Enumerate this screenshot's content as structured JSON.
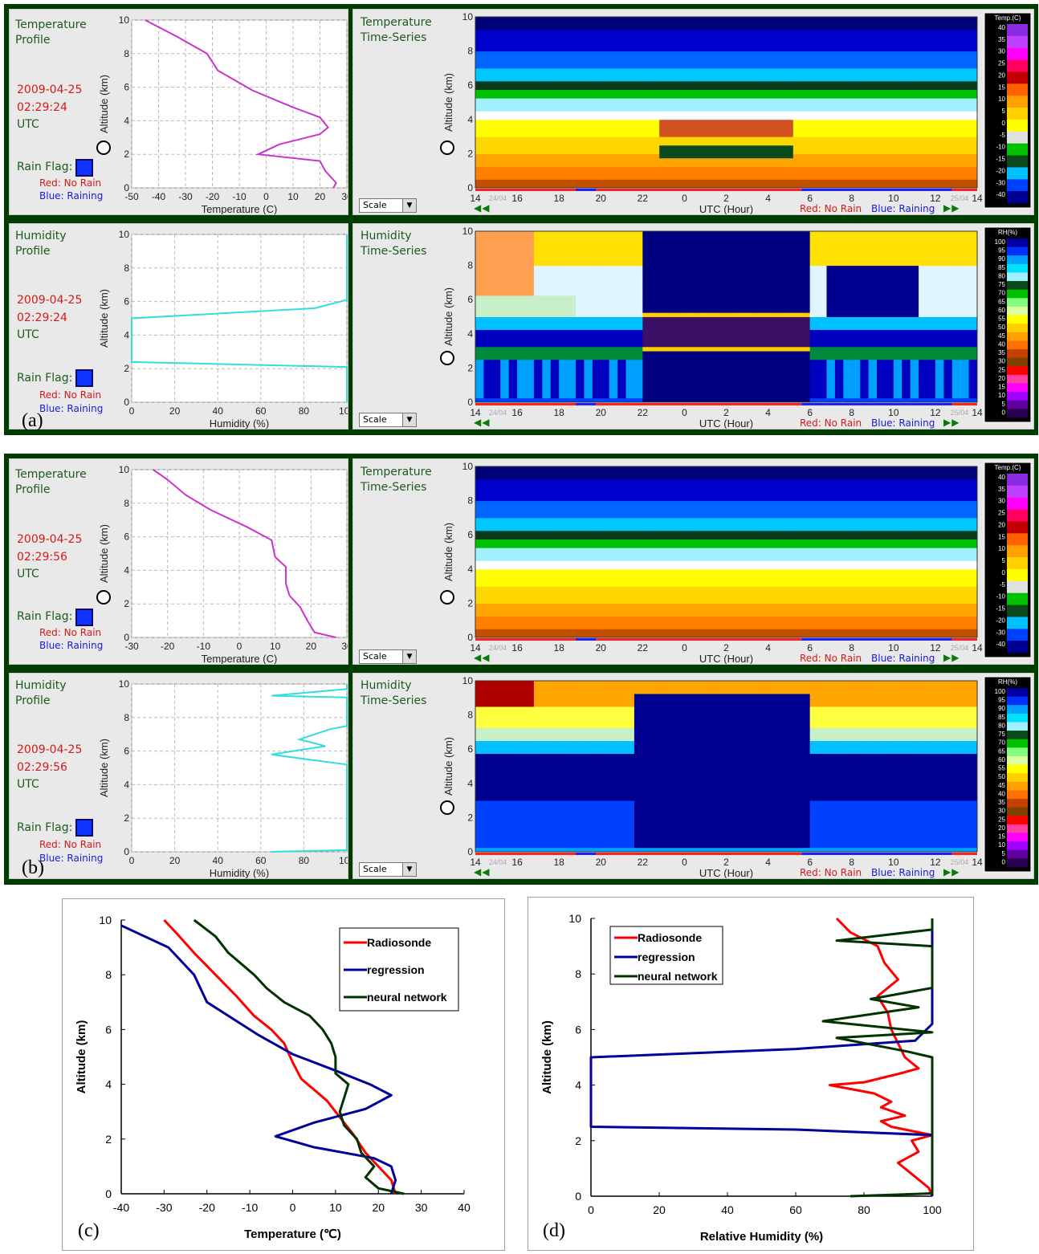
{
  "screens": [
    {
      "tag": "(a)",
      "temp_profile": {
        "title": "Temperature\nProfile",
        "date": "2009-04-25",
        "time": "02:29:24",
        "tz": "UTC",
        "xlabel": "Temperature (C)",
        "ylabel": "Altitude (km)",
        "xticks": [
          "-50",
          "-40",
          "-30",
          "-20",
          "-10",
          "0",
          "10",
          "20",
          "30"
        ],
        "xrange": [
          -50,
          30
        ],
        "yticks": [
          "0",
          "2",
          "4",
          "6",
          "8",
          "10"
        ],
        "line_color": "#cc33cc",
        "profile": [
          [
            25,
            0
          ],
          [
            26,
            0.3
          ],
          [
            22,
            1
          ],
          [
            20,
            1.6
          ],
          [
            -3,
            2
          ],
          [
            5,
            2.6
          ],
          [
            20,
            3.2
          ],
          [
            23,
            3.6
          ],
          [
            20,
            4.2
          ],
          [
            10,
            4.8
          ],
          [
            -5,
            5.8
          ],
          [
            -18,
            7
          ],
          [
            -22,
            8
          ],
          [
            -33,
            9
          ],
          [
            -45,
            10
          ]
        ]
      },
      "hum_profile": {
        "title": "Humidity\nProfile",
        "date": "2009-04-25",
        "time": "02:29:24",
        "tz": "UTC",
        "xlabel": "Humidity (%)",
        "ylabel": "Altitude (km)",
        "xticks": [
          "0",
          "20",
          "40",
          "60",
          "80",
          "100"
        ],
        "xrange": [
          0,
          100
        ],
        "yticks": [
          "0",
          "2",
          "4",
          "6",
          "8",
          "10"
        ],
        "line_color": "#33dddd",
        "profile": [
          [
            100,
            0
          ],
          [
            100,
            2.1
          ],
          [
            0,
            2.4
          ],
          [
            0,
            5
          ],
          [
            85,
            5.6
          ],
          [
            100,
            6.1
          ],
          [
            100,
            10
          ]
        ]
      },
      "temp_ts": {
        "title": "Temperature\nTime-Series",
        "ylabel": "Altitude (km)",
        "xlabel": "UTC (Hour)",
        "yticks": [
          "0",
          "2",
          "4",
          "6",
          "8",
          "10"
        ]
      },
      "hum_ts": {
        "title": "Humidity\nTime-Series",
        "ylabel": "Altitude (km)",
        "xlabel": "UTC (Hour)",
        "yticks": [
          "0",
          "2",
          "4",
          "6",
          "8",
          "10"
        ]
      }
    },
    {
      "tag": "(b)",
      "temp_profile": {
        "title": "Temperature\nProfile",
        "date": "2009-04-25",
        "time": "02:29:56",
        "tz": "UTC",
        "xlabel": "Temperature (C)",
        "ylabel": "Altitude (km)",
        "xticks": [
          "-30",
          "-20",
          "-10",
          "0",
          "10",
          "20",
          "30"
        ],
        "xrange": [
          -30,
          30
        ],
        "yticks": [
          "0",
          "2",
          "4",
          "6",
          "8",
          "10"
        ],
        "line_color": "#cc33cc",
        "profile": [
          [
            27,
            0
          ],
          [
            21,
            0.3
          ],
          [
            19,
            1
          ],
          [
            17,
            1.8
          ],
          [
            14,
            2.5
          ],
          [
            13,
            3.2
          ],
          [
            13,
            4.2
          ],
          [
            10,
            4.8
          ],
          [
            9,
            5.8
          ],
          [
            2,
            6.6
          ],
          [
            -8,
            7.6
          ],
          [
            -15,
            8.5
          ],
          [
            -20,
            9.4
          ],
          [
            -24,
            10
          ]
        ]
      },
      "hum_profile": {
        "title": "Humidity\nProfile",
        "date": "2009-04-25",
        "time": "02:29:56",
        "tz": "UTC",
        "xlabel": "Humidity (%)",
        "ylabel": "Altitude (km)",
        "xticks": [
          "0",
          "20",
          "40",
          "60",
          "80",
          "100"
        ],
        "xrange": [
          0,
          100
        ],
        "yticks": [
          "0",
          "2",
          "4",
          "6",
          "8",
          "10"
        ],
        "line_color": "#33dddd",
        "profile": [
          [
            65,
            0
          ],
          [
            100,
            0.1
          ],
          [
            100,
            5.2
          ],
          [
            82,
            5.5
          ],
          [
            65,
            5.8
          ],
          [
            90,
            6.3
          ],
          [
            78,
            6.7
          ],
          [
            92,
            7.3
          ],
          [
            100,
            7.5
          ],
          [
            100,
            9.2
          ],
          [
            65,
            9.3
          ],
          [
            100,
            9.7
          ],
          [
            100,
            10
          ]
        ]
      },
      "temp_ts": {
        "title": "Temperature\nTime-Series",
        "ylabel": "Altitude (km)",
        "xlabel": "UTC (Hour)",
        "yticks": [
          "0",
          "2",
          "4",
          "6",
          "8",
          "10"
        ]
      },
      "hum_ts": {
        "title": "Humidity\nTime-Series",
        "ylabel": "Altitude (km)",
        "xlabel": "UTC (Hour)",
        "yticks": [
          "0",
          "2",
          "4",
          "6",
          "8",
          "10"
        ]
      }
    }
  ],
  "common": {
    "rain_flag": "Rain Flag:",
    "no_rain": "Red: No Rain",
    "raining": "Blue: Raining",
    "scale": "Scale",
    "ts_xticks": [
      "14",
      "16",
      "18",
      "20",
      "22",
      "0",
      "2",
      "4",
      "6",
      "8",
      "10",
      "12",
      "14"
    ],
    "ts_date_start": "24/04",
    "ts_date_end": "25/04",
    "temp_cbar_title": "Temp.(C)",
    "temp_cbar_ticks": [
      "40",
      "35",
      "30",
      "25",
      "20",
      "15",
      "10",
      "5",
      "0",
      "-5",
      "-10",
      "-15",
      "-20",
      "-30",
      "-40"
    ],
    "rh_cbar_title": "RH(%)",
    "rh_cbar_ticks": [
      "100",
      "95",
      "90",
      "85",
      "80",
      "75",
      "70",
      "65",
      "60",
      "55",
      "50",
      "45",
      "40",
      "35",
      "30",
      "25",
      "20",
      "15",
      "10",
      "5",
      "0"
    ]
  },
  "chart_data": [
    {
      "tag": "(c)",
      "type": "line",
      "xlabel": "Temperature (℃)",
      "ylabel": "Altitude (km)",
      "xlim": [
        -40,
        40
      ],
      "ylim": [
        0,
        10
      ],
      "xticks": [
        "-40",
        "-30",
        "-20",
        "-10",
        "0",
        "10",
        "20",
        "30",
        "40"
      ],
      "yticks": [
        "0",
        "2",
        "4",
        "6",
        "8",
        "10"
      ],
      "legend": "top-right",
      "series": [
        {
          "name": "Radiosonde",
          "color": "#ff0000",
          "points": [
            [
              24,
              0
            ],
            [
              23,
              0.5
            ],
            [
              20,
              1
            ],
            [
              17,
              1.5
            ],
            [
              14,
              2.2
            ],
            [
              11,
              2.8
            ],
            [
              8,
              3.4
            ],
            [
              5,
              3.8
            ],
            [
              2,
              4.2
            ],
            [
              0,
              4.8
            ],
            [
              -2,
              5.5
            ],
            [
              -5,
              6
            ],
            [
              -9,
              6.5
            ],
            [
              -13,
              7.2
            ],
            [
              -18,
              8
            ],
            [
              -23,
              8.8
            ],
            [
              -27,
              9.5
            ],
            [
              -30,
              10
            ]
          ]
        },
        {
          "name": "regression",
          "color": "#000099",
          "points": [
            [
              23,
              0
            ],
            [
              24,
              0.5
            ],
            [
              23,
              1
            ],
            [
              19,
              1.3
            ],
            [
              5,
              1.7
            ],
            [
              -4,
              2.1
            ],
            [
              5,
              2.6
            ],
            [
              17,
              3.1
            ],
            [
              23,
              3.6
            ],
            [
              18,
              4
            ],
            [
              10,
              4.5
            ],
            [
              0,
              5.1
            ],
            [
              -8,
              5.8
            ],
            [
              -14,
              6.4
            ],
            [
              -20,
              7
            ],
            [
              -23,
              8
            ],
            [
              -29,
              9
            ],
            [
              -40,
              9.8
            ]
          ]
        },
        {
          "name": "neural network",
          "color": "#003300",
          "points": [
            [
              26,
              0
            ],
            [
              20,
              0.2
            ],
            [
              17,
              0.6
            ],
            [
              19,
              1
            ],
            [
              16,
              1.5
            ],
            [
              15,
              2
            ],
            [
              12,
              2.5
            ],
            [
              11,
              3
            ],
            [
              12,
              3.5
            ],
            [
              13,
              4
            ],
            [
              10,
              4.4
            ],
            [
              10,
              5
            ],
            [
              9,
              5.5
            ],
            [
              7,
              6
            ],
            [
              4,
              6.5
            ],
            [
              -2,
              7
            ],
            [
              -6,
              7.5
            ],
            [
              -9,
              8
            ],
            [
              -15,
              8.8
            ],
            [
              -18,
              9.4
            ],
            [
              -23,
              10
            ]
          ]
        }
      ]
    },
    {
      "tag": "(d)",
      "type": "line",
      "xlabel": "Relative Humidity (%)",
      "ylabel": "Altitude (km)",
      "xlim": [
        0,
        100
      ],
      "ylim": [
        0,
        10
      ],
      "xticks": [
        "0",
        "20",
        "40",
        "60",
        "80",
        "100"
      ],
      "yticks": [
        "0",
        "2",
        "4",
        "6",
        "8",
        "10"
      ],
      "legend": "top-left",
      "series": [
        {
          "name": "Radiosonde",
          "color": "#ff0000",
          "points": [
            [
              100,
              0
            ],
            [
              99,
              0.3
            ],
            [
              96,
              0.6
            ],
            [
              92,
              1
            ],
            [
              90,
              1.2
            ],
            [
              96,
              1.6
            ],
            [
              94,
              2
            ],
            [
              100,
              2.2
            ],
            [
              88,
              2.5
            ],
            [
              85,
              2.7
            ],
            [
              92,
              2.9
            ],
            [
              85,
              3.2
            ],
            [
              88,
              3.4
            ],
            [
              83,
              3.7
            ],
            [
              70,
              4
            ],
            [
              80,
              4.1
            ],
            [
              90,
              4.4
            ],
            [
              96,
              4.6
            ],
            [
              92,
              5
            ],
            [
              90,
              5.5
            ],
            [
              88,
              6
            ],
            [
              87,
              6.6
            ],
            [
              84,
              7.2
            ],
            [
              90,
              7.8
            ],
            [
              86,
              8.4
            ],
            [
              84,
              9
            ],
            [
              76,
              9.5
            ],
            [
              72,
              10
            ]
          ]
        },
        {
          "name": "regression",
          "color": "#000099",
          "points": [
            [
              100,
              0
            ],
            [
              100,
              1
            ],
            [
              100,
              2.2
            ],
            [
              60,
              2.4
            ],
            [
              0,
              2.5
            ],
            [
              0,
              4.8
            ],
            [
              0,
              5
            ],
            [
              60,
              5.3
            ],
            [
              95,
              5.6
            ],
            [
              100,
              6.2
            ],
            [
              100,
              10
            ]
          ]
        },
        {
          "name": "neural network",
          "color": "#003300",
          "points": [
            [
              76,
              0
            ],
            [
              100,
              0.1
            ],
            [
              100,
              1.4
            ],
            [
              100,
              5
            ],
            [
              93,
              5.2
            ],
            [
              72,
              5.7
            ],
            [
              100,
              5.9
            ],
            [
              68,
              6.3
            ],
            [
              96,
              6.8
            ],
            [
              82,
              7.1
            ],
            [
              100,
              7.5
            ],
            [
              100,
              9
            ],
            [
              72,
              9.2
            ],
            [
              100,
              9.6
            ],
            [
              100,
              10
            ]
          ]
        }
      ]
    }
  ]
}
